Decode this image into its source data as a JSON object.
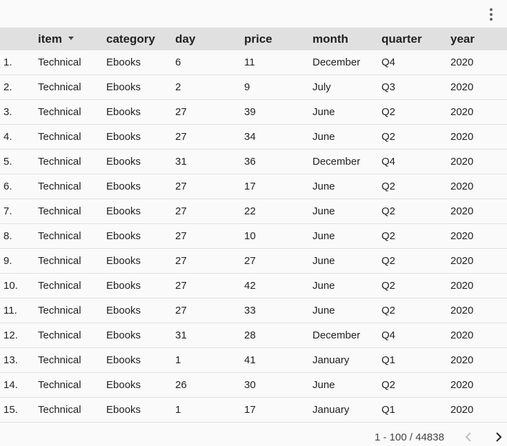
{
  "header": {
    "columns": {
      "index": "",
      "item": "item",
      "category": "category",
      "day": "day",
      "price": "price",
      "month": "month",
      "quarter": "quarter",
      "year": "year"
    },
    "sorted_column": "item",
    "sort_direction": "descending"
  },
  "rows": [
    {
      "index": "1.",
      "item": "Technical",
      "category": "Ebooks",
      "day": "6",
      "price": "11",
      "month": "December",
      "quarter": "Q4",
      "year": "2020"
    },
    {
      "index": "2.",
      "item": "Technical",
      "category": "Ebooks",
      "day": "2",
      "price": "9",
      "month": "July",
      "quarter": "Q3",
      "year": "2020"
    },
    {
      "index": "3.",
      "item": "Technical",
      "category": "Ebooks",
      "day": "27",
      "price": "39",
      "month": "June",
      "quarter": "Q2",
      "year": "2020"
    },
    {
      "index": "4.",
      "item": "Technical",
      "category": "Ebooks",
      "day": "27",
      "price": "34",
      "month": "June",
      "quarter": "Q2",
      "year": "2020"
    },
    {
      "index": "5.",
      "item": "Technical",
      "category": "Ebooks",
      "day": "31",
      "price": "36",
      "month": "December",
      "quarter": "Q4",
      "year": "2020"
    },
    {
      "index": "6.",
      "item": "Technical",
      "category": "Ebooks",
      "day": "27",
      "price": "17",
      "month": "June",
      "quarter": "Q2",
      "year": "2020"
    },
    {
      "index": "7.",
      "item": "Technical",
      "category": "Ebooks",
      "day": "27",
      "price": "22",
      "month": "June",
      "quarter": "Q2",
      "year": "2020"
    },
    {
      "index": "8.",
      "item": "Technical",
      "category": "Ebooks",
      "day": "27",
      "price": "10",
      "month": "June",
      "quarter": "Q2",
      "year": "2020"
    },
    {
      "index": "9.",
      "item": "Technical",
      "category": "Ebooks",
      "day": "27",
      "price": "27",
      "month": "June",
      "quarter": "Q2",
      "year": "2020"
    },
    {
      "index": "10.",
      "item": "Technical",
      "category": "Ebooks",
      "day": "27",
      "price": "42",
      "month": "June",
      "quarter": "Q2",
      "year": "2020"
    },
    {
      "index": "11.",
      "item": "Technical",
      "category": "Ebooks",
      "day": "27",
      "price": "33",
      "month": "June",
      "quarter": "Q2",
      "year": "2020"
    },
    {
      "index": "12.",
      "item": "Technical",
      "category": "Ebooks",
      "day": "31",
      "price": "28",
      "month": "December",
      "quarter": "Q4",
      "year": "2020"
    },
    {
      "index": "13.",
      "item": "Technical",
      "category": "Ebooks",
      "day": "1",
      "price": "41",
      "month": "January",
      "quarter": "Q1",
      "year": "2020"
    },
    {
      "index": "14.",
      "item": "Technical",
      "category": "Ebooks",
      "day": "26",
      "price": "30",
      "month": "June",
      "quarter": "Q2",
      "year": "2020"
    },
    {
      "index": "15.",
      "item": "Technical",
      "category": "Ebooks",
      "day": "1",
      "price": "17",
      "month": "January",
      "quarter": "Q1",
      "year": "2020"
    }
  ],
  "footer": {
    "pagination_text": "1 - 100 / 44838"
  },
  "icons": {
    "menu": "more-vert-icon",
    "sort": "sort-descending-icon",
    "prev": "chevron-left-icon",
    "next": "chevron-right-icon"
  },
  "colors": {
    "header_bg": "#e0e0e0",
    "page_bg": "#fafafa",
    "row_divider": "#e0e0e0",
    "prev_disabled": "#bdbdbd",
    "next_enabled": "#212121"
  }
}
